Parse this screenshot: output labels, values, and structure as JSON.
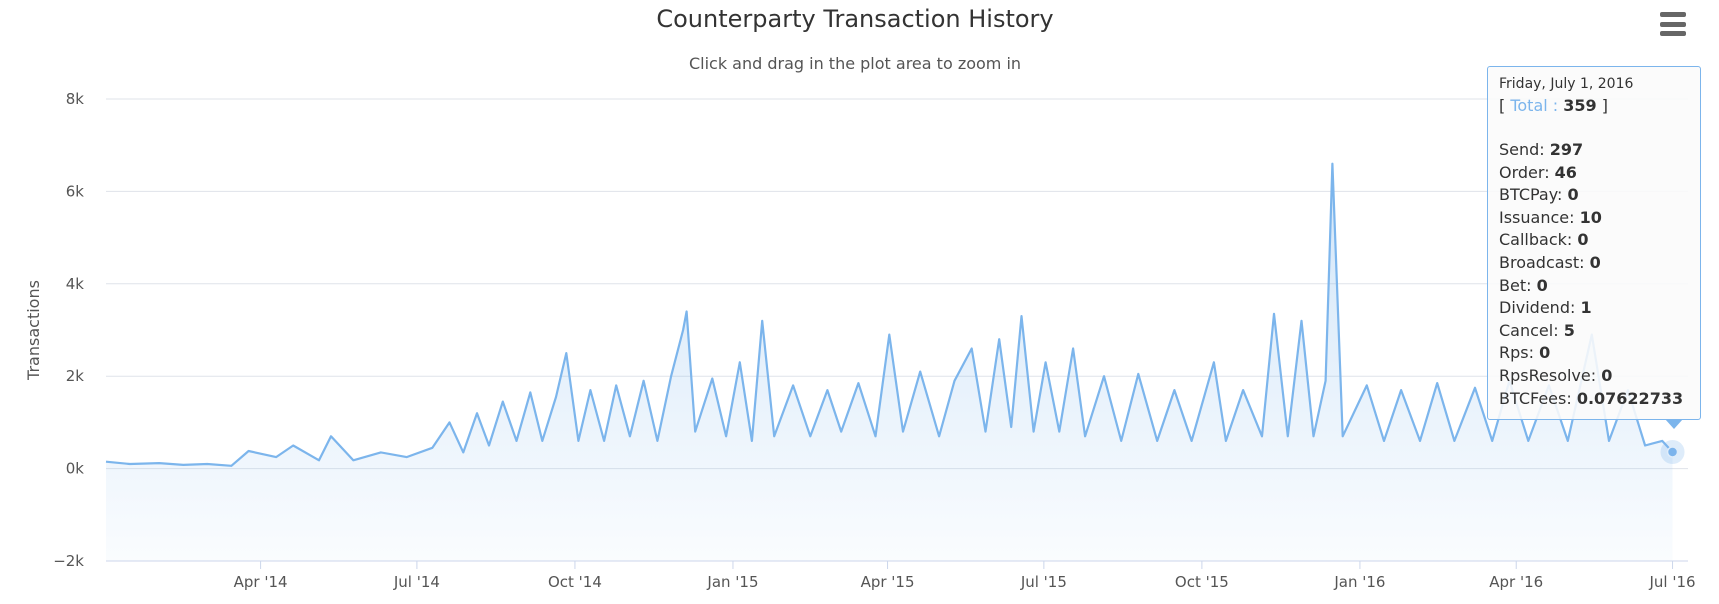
{
  "chart_data": {
    "type": "area",
    "title": "Counterparty Transaction History",
    "subtitle": "Click and drag in the plot area to zoom in",
    "ylabel": "Transactions",
    "ylim": [
      -2000,
      8000
    ],
    "yticks": [
      -2000,
      0,
      2000,
      4000,
      6000,
      8000
    ],
    "ytick_labels": [
      "−2k",
      "0k",
      "2k",
      "4k",
      "6k",
      "8k"
    ],
    "xticks": [
      "2014-04-01",
      "2014-07-01",
      "2014-10-01",
      "2015-01-01",
      "2015-04-01",
      "2015-07-01",
      "2015-10-01",
      "2016-01-01",
      "2016-04-01",
      "2016-07-01"
    ],
    "xtick_labels": [
      "Apr '14",
      "Jul '14",
      "Oct '14",
      "Jan '15",
      "Apr '15",
      "Jul '15",
      "Oct '15",
      "Jan '16",
      "Apr '16",
      "Jul '16"
    ],
    "grid": true,
    "legend": false,
    "series": [
      {
        "color": "#7cb5ec",
        "points": [
          [
            "2014-01-01",
            150
          ],
          [
            "2014-01-15",
            100
          ],
          [
            "2014-02-01",
            120
          ],
          [
            "2014-02-15",
            80
          ],
          [
            "2014-03-01",
            100
          ],
          [
            "2014-03-15",
            60
          ],
          [
            "2014-03-25",
            380
          ],
          [
            "2014-04-10",
            250
          ],
          [
            "2014-04-20",
            500
          ],
          [
            "2014-05-05",
            180
          ],
          [
            "2014-05-12",
            700
          ],
          [
            "2014-05-25",
            180
          ],
          [
            "2014-06-10",
            350
          ],
          [
            "2014-06-25",
            250
          ],
          [
            "2014-07-10",
            450
          ],
          [
            "2014-07-20",
            1000
          ],
          [
            "2014-07-28",
            350
          ],
          [
            "2014-08-05",
            1200
          ],
          [
            "2014-08-12",
            500
          ],
          [
            "2014-08-20",
            1450
          ],
          [
            "2014-08-28",
            600
          ],
          [
            "2014-09-05",
            1650
          ],
          [
            "2014-09-12",
            600
          ],
          [
            "2014-09-20",
            1550
          ],
          [
            "2014-09-26",
            2500
          ],
          [
            "2014-10-03",
            600
          ],
          [
            "2014-10-10",
            1700
          ],
          [
            "2014-10-18",
            600
          ],
          [
            "2014-10-25",
            1800
          ],
          [
            "2014-11-02",
            700
          ],
          [
            "2014-11-10",
            1900
          ],
          [
            "2014-11-18",
            600
          ],
          [
            "2014-11-26",
            2000
          ],
          [
            "2014-12-03",
            3000
          ],
          [
            "2014-12-05",
            3400
          ],
          [
            "2014-12-10",
            800
          ],
          [
            "2014-12-20",
            1950
          ],
          [
            "2014-12-28",
            700
          ],
          [
            "2015-01-05",
            2300
          ],
          [
            "2015-01-12",
            600
          ],
          [
            "2015-01-18",
            3200
          ],
          [
            "2015-01-25",
            700
          ],
          [
            "2015-02-05",
            1800
          ],
          [
            "2015-02-15",
            700
          ],
          [
            "2015-02-25",
            1700
          ],
          [
            "2015-03-05",
            800
          ],
          [
            "2015-03-15",
            1850
          ],
          [
            "2015-03-25",
            700
          ],
          [
            "2015-04-02",
            2900
          ],
          [
            "2015-04-10",
            800
          ],
          [
            "2015-04-20",
            2100
          ],
          [
            "2015-05-01",
            700
          ],
          [
            "2015-05-10",
            1900
          ],
          [
            "2015-05-20",
            2600
          ],
          [
            "2015-05-28",
            800
          ],
          [
            "2015-06-05",
            2800
          ],
          [
            "2015-06-12",
            900
          ],
          [
            "2015-06-18",
            3300
          ],
          [
            "2015-06-25",
            800
          ],
          [
            "2015-07-02",
            2300
          ],
          [
            "2015-07-10",
            800
          ],
          [
            "2015-07-18",
            2600
          ],
          [
            "2015-07-25",
            700
          ],
          [
            "2015-08-05",
            2000
          ],
          [
            "2015-08-15",
            600
          ],
          [
            "2015-08-25",
            2050
          ],
          [
            "2015-09-05",
            600
          ],
          [
            "2015-09-15",
            1700
          ],
          [
            "2015-09-25",
            600
          ],
          [
            "2015-10-08",
            2300
          ],
          [
            "2015-10-15",
            600
          ],
          [
            "2015-10-25",
            1700
          ],
          [
            "2015-11-05",
            700
          ],
          [
            "2015-11-12",
            3350
          ],
          [
            "2015-11-20",
            700
          ],
          [
            "2015-11-28",
            3200
          ],
          [
            "2015-12-05",
            700
          ],
          [
            "2015-12-12",
            1900
          ],
          [
            "2015-12-16",
            6600
          ],
          [
            "2015-12-22",
            700
          ],
          [
            "2016-01-05",
            1800
          ],
          [
            "2016-01-15",
            600
          ],
          [
            "2016-01-25",
            1700
          ],
          [
            "2016-02-05",
            600
          ],
          [
            "2016-02-15",
            1850
          ],
          [
            "2016-02-25",
            600
          ],
          [
            "2016-03-08",
            1750
          ],
          [
            "2016-03-18",
            600
          ],
          [
            "2016-03-28",
            1900
          ],
          [
            "2016-04-08",
            600
          ],
          [
            "2016-04-20",
            1800
          ],
          [
            "2016-05-01",
            600
          ],
          [
            "2016-05-15",
            2900
          ],
          [
            "2016-05-25",
            600
          ],
          [
            "2016-06-05",
            1700
          ],
          [
            "2016-06-15",
            500
          ],
          [
            "2016-06-25",
            600
          ],
          [
            "2016-07-01",
            359
          ]
        ]
      }
    ],
    "tooltip": {
      "date": "Friday, July 1, 2016",
      "total_label": "Total",
      "total_value": "359",
      "rows": [
        {
          "label": "Send",
          "value": "297"
        },
        {
          "label": "Order",
          "value": "46"
        },
        {
          "label": "BTCPay",
          "value": "0"
        },
        {
          "label": "Issuance",
          "value": "10"
        },
        {
          "label": "Callback",
          "value": "0"
        },
        {
          "label": "Broadcast",
          "value": "0"
        },
        {
          "label": "Bet",
          "value": "0"
        },
        {
          "label": "Dividend",
          "value": "1"
        },
        {
          "label": "Cancel",
          "value": "5"
        },
        {
          "label": "Rps",
          "value": "0"
        },
        {
          "label": "RpsResolve",
          "value": "0"
        },
        {
          "label": "BTCFees",
          "value": "0.07622733"
        }
      ]
    }
  },
  "icons": {
    "menu": "hamburger-menu-icon"
  }
}
